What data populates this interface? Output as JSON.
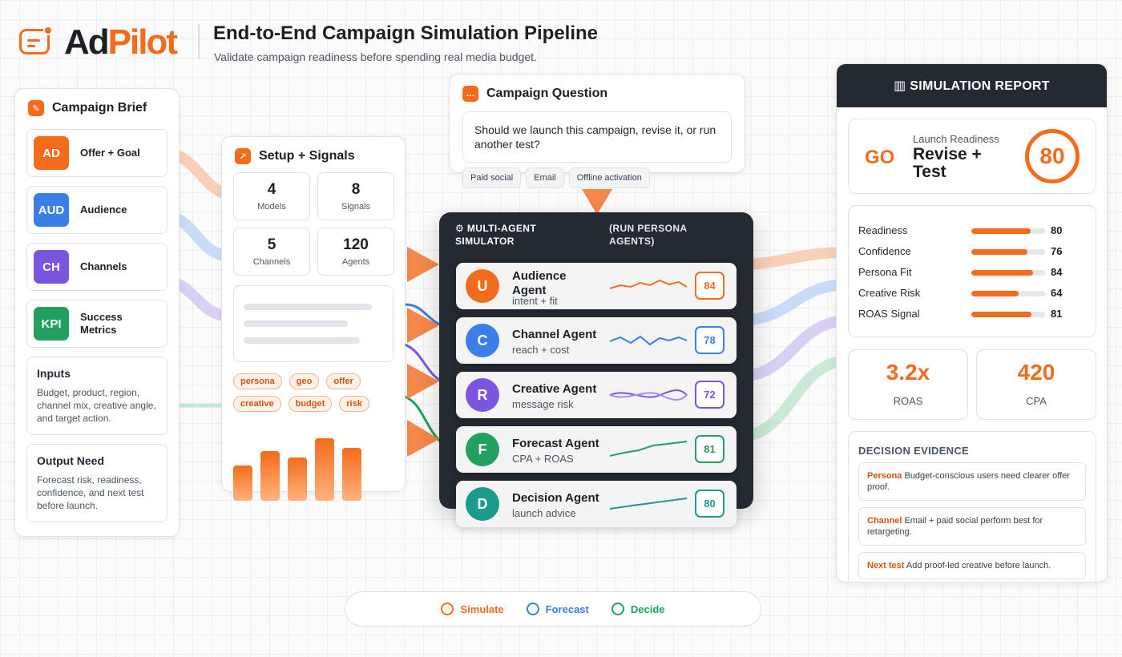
{
  "header": {
    "brand_part1": "Ad",
    "brand_part2": "Pilot",
    "title": "End-to-End Campaign Simulation Pipeline",
    "subtitle": "Validate campaign readiness before spending real media budget."
  },
  "brief": {
    "title": "Campaign Brief",
    "title_icon": "pencil-icon",
    "items": [
      {
        "badge": "AD",
        "label": "Offer + Goal",
        "color": "#f46c1b"
      },
      {
        "badge": "AUD",
        "label": "Audience",
        "color": "#3b7ee8"
      },
      {
        "badge": "CH",
        "label": "Channels",
        "color": "#7b55e0"
      },
      {
        "badge": "KPI",
        "label": "Success Metrics",
        "color": "#22a060"
      }
    ],
    "inputs_title": "Inputs",
    "inputs_text": "Budget, product, region, channel mix, creative angle, and target action.",
    "output_title": "Output Need",
    "output_text": "Forecast risk, readiness, confidence, and next test before launch."
  },
  "setup": {
    "title": "Setup + Signals",
    "title_icon": "arrow-up-right-icon",
    "stats": [
      {
        "num": "4",
        "label": "Models"
      },
      {
        "num": "8",
        "label": "Signals"
      },
      {
        "num": "5",
        "label": "Channels"
      },
      {
        "num": "120",
        "label": "Agents"
      }
    ],
    "tags": [
      "persona",
      "geo",
      "offer",
      "creative",
      "budget",
      "risk"
    ]
  },
  "question": {
    "title": "Campaign Question",
    "title_icon": "chat-bubble-icon",
    "text": "Should we launch this campaign, revise it, or run another test?",
    "chips": [
      "Paid social",
      "Email",
      "Offline activation"
    ]
  },
  "simulator": {
    "title": "⚙ MULTI-AGENT SIMULATOR",
    "subtitle": "(RUN PERSONA AGENTS)",
    "agents": [
      {
        "initial": "U",
        "name": "Audience Agent",
        "sub": "intent + fit",
        "score": "84",
        "color": "#f46c1b"
      },
      {
        "initial": "C",
        "name": "Channel Agent",
        "sub": "reach + cost",
        "score": "78",
        "color": "#3b7ee8"
      },
      {
        "initial": "R",
        "name": "Creative Agent",
        "sub": "message risk",
        "score": "72",
        "color": "#7b55e0"
      },
      {
        "initial": "F",
        "name": "Forecast Agent",
        "sub": "CPA + ROAS",
        "score": "81",
        "color": "#22a060"
      },
      {
        "initial": "D",
        "name": "Decision Agent",
        "sub": "launch advice",
        "score": "80",
        "color": "#1a9b8c"
      }
    ]
  },
  "report": {
    "title": "▥ SIMULATION REPORT",
    "decision": "GO",
    "readiness_label": "Launch Readiness",
    "readiness_value": "Revise + Test",
    "readiness_score": "80",
    "metrics": [
      {
        "label": "Readiness",
        "value": "80"
      },
      {
        "label": "Confidence",
        "value": "76"
      },
      {
        "label": "Persona Fit",
        "value": "84"
      },
      {
        "label": "Creative Risk",
        "value": "64"
      },
      {
        "label": "ROAS Signal",
        "value": "81"
      }
    ],
    "kpis": [
      {
        "value": "3.2x",
        "label": "ROAS"
      },
      {
        "value": "420",
        "label": "CPA"
      }
    ],
    "evidence_title": "DECISION EVIDENCE",
    "evidence": [
      {
        "key": "Persona",
        "text": " Budget-conscious users need clearer offer proof."
      },
      {
        "key": "Channel",
        "text": " Email + paid social perform best for retargeting."
      },
      {
        "key": "Next test",
        "text": " Add proof-led creative before launch."
      }
    ]
  },
  "legend": [
    {
      "label": "Simulate",
      "color": "#f46c1b"
    },
    {
      "label": "Forecast",
      "color": "#3b7ee8"
    },
    {
      "label": "Decide",
      "color": "#22a060"
    }
  ]
}
